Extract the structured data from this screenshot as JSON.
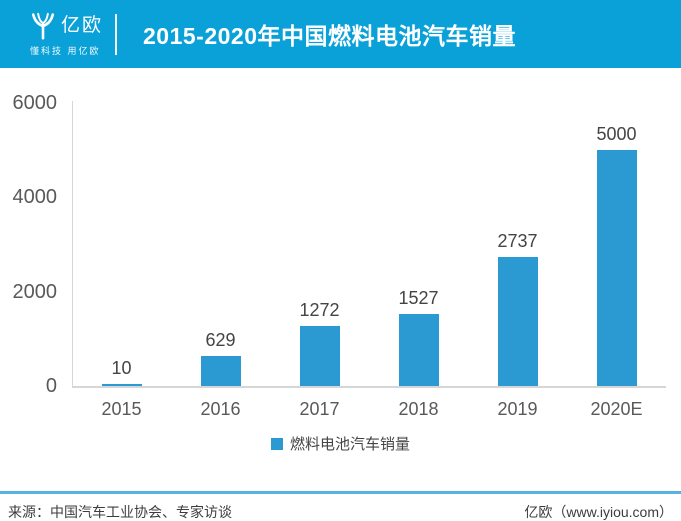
{
  "header": {
    "logo": {
      "brand": "亿欧",
      "tagline": "懂科技 用亿欧"
    },
    "title": "2015-2020年中国燃料电池汽车销量"
  },
  "chart_data": {
    "type": "bar",
    "title": "2015-2020年中国燃料电池汽车销量",
    "categories": [
      "2015",
      "2016",
      "2017",
      "2018",
      "2019",
      "2020E"
    ],
    "values": [
      10,
      629,
      1272,
      1527,
      2737,
      5000
    ],
    "series_name": "燃料电池汽车销量",
    "xlabel": "",
    "ylabel": "",
    "ylim": [
      0,
      6000
    ],
    "yticks": [
      0,
      2000,
      4000,
      6000
    ],
    "grid": false,
    "value_labels": true,
    "legend_position": "bottom",
    "bar_color": "#2b9ad3"
  },
  "legend": {
    "label": "燃料电池汽车销量"
  },
  "footer": {
    "source": "来源：中国汽车工业协会、专家访谈",
    "credit": "亿欧（www.iyiou.com）"
  },
  "colors": {
    "header_bg": "#0aa1d8",
    "bar": "#2b9ad3",
    "axis_line": "#d6d6d6",
    "footer_rule": "#56b2e0",
    "tick_text": "#595959",
    "value_text": "#444444",
    "footer_text": "#3d3d3d",
    "title_text": "#ffffff"
  }
}
